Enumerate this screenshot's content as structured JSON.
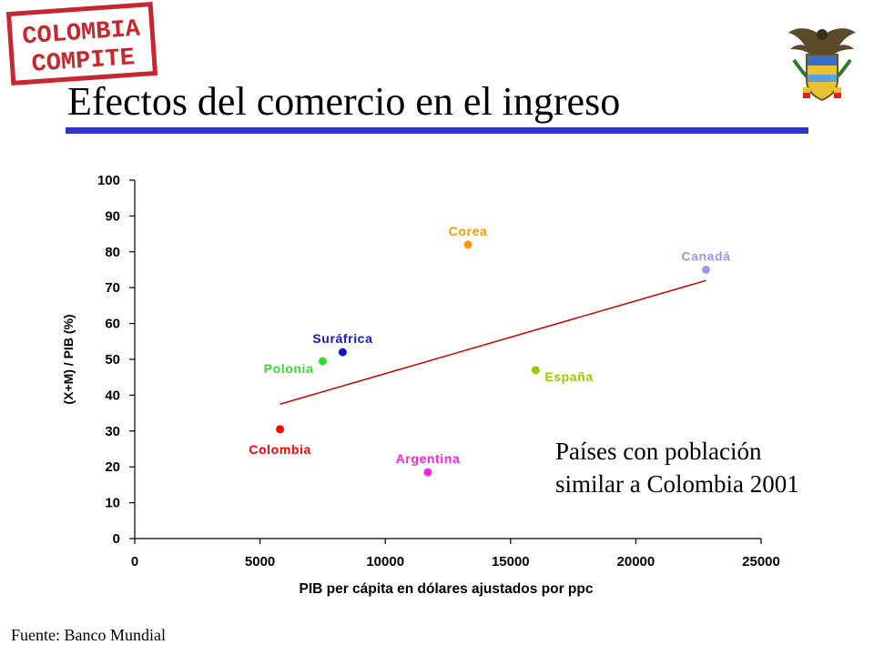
{
  "slide": {
    "logo": {
      "line1": "COLOMBIA",
      "line2": "COMPITE",
      "color": "#c8282d"
    },
    "title": "Efectos del comercio en el ingreso",
    "accent_color": "#3333cc",
    "note_lines": [
      "Países con población",
      "similar a Colombia 2001"
    ],
    "source": "Fuente: Banco Mundial"
  },
  "chart_data": {
    "type": "scatter",
    "title": "",
    "xlabel": "PIB per cápita en dólares ajustados por ppc",
    "ylabel": "(X+M) / PIB (%)",
    "xlim": [
      0,
      25000
    ],
    "ylim": [
      0,
      100
    ],
    "xticks": [
      0,
      5000,
      10000,
      15000,
      20000,
      25000
    ],
    "yticks": [
      0,
      10,
      20,
      30,
      40,
      50,
      60,
      70,
      80,
      90,
      100
    ],
    "grid": false,
    "points": [
      {
        "label": "Colombia",
        "x": 5800,
        "y": 30.5,
        "color": "#ff0000",
        "label_side": "below"
      },
      {
        "label": "Polonia",
        "x": 7500,
        "y": 49.5,
        "color": "#33dd33",
        "label_side": "left"
      },
      {
        "label": "Suráfrica",
        "x": 8300,
        "y": 52,
        "color": "#1515cc",
        "label_side": "above"
      },
      {
        "label": "Argentina",
        "x": 11700,
        "y": 18.5,
        "color": "#ff22dd",
        "label_side": "above"
      },
      {
        "label": "Corea",
        "x": 13300,
        "y": 82,
        "color": "#ff9900",
        "label_side": "above"
      },
      {
        "label": "España",
        "x": 16000,
        "y": 47,
        "color": "#99cc00",
        "label_side": "right"
      },
      {
        "label": "Canadá",
        "x": 22800,
        "y": 75,
        "color": "#9999ee",
        "label_side": "above"
      }
    ],
    "trendline": {
      "x": [
        5800,
        22800
      ],
      "y": [
        37.5,
        72
      ],
      "color": "#cc0000"
    }
  }
}
